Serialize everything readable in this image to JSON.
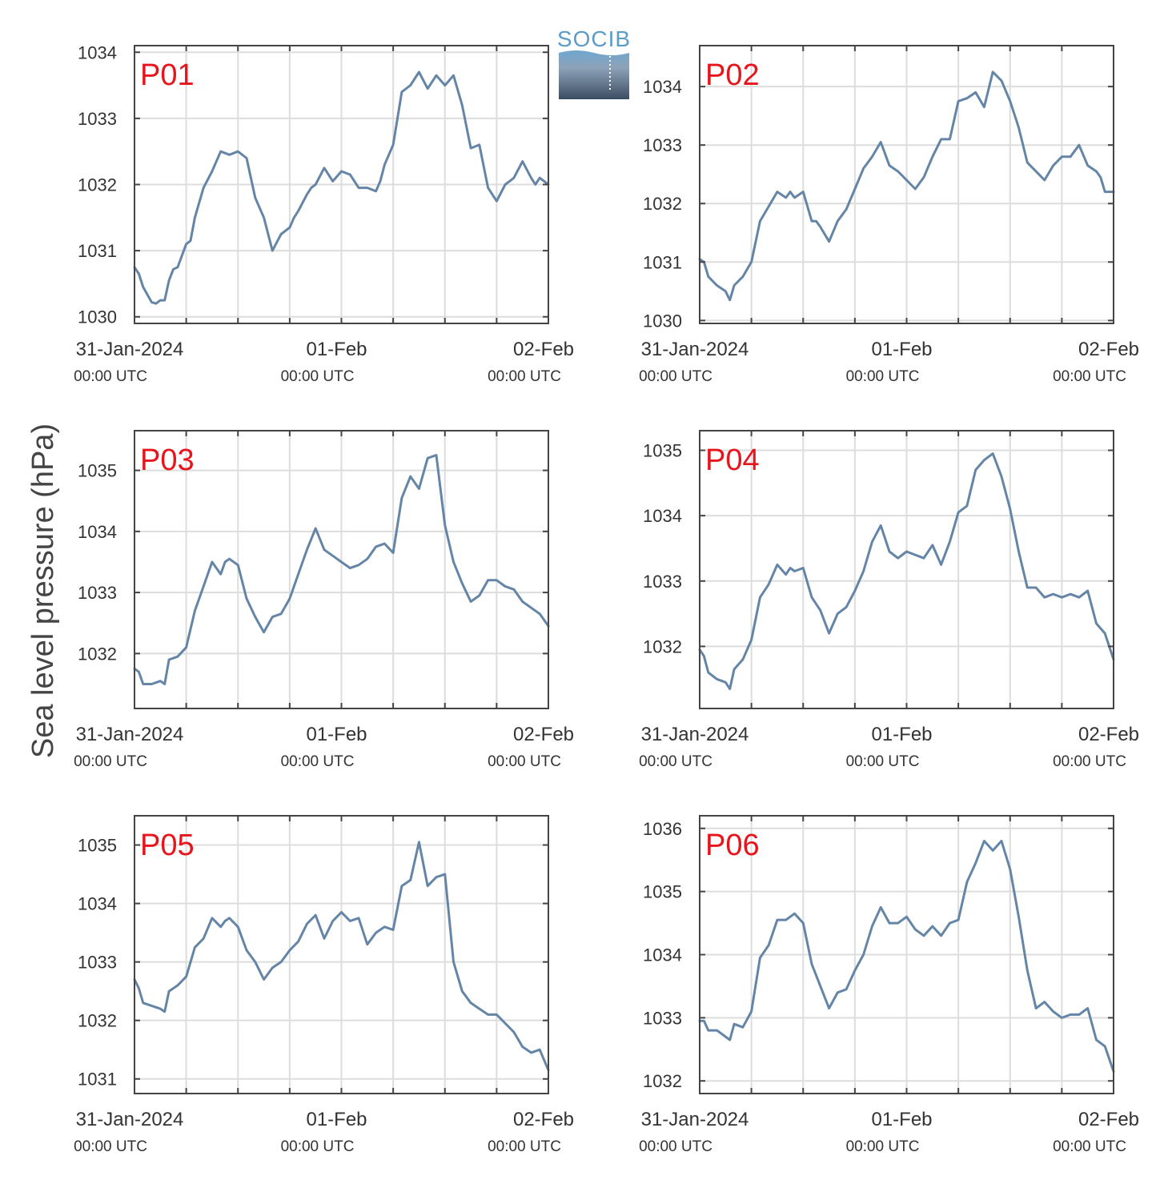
{
  "figure": {
    "ylabel": "Sea level pressure (hPa)",
    "logo_text": "SOCIB",
    "colors": {
      "line": "#6585a7",
      "title": "#e8141c",
      "grid": "#dddddd",
      "axis": "#444444",
      "logo_top": "#6fa6cf",
      "logo_bottom": "#3b4d63"
    }
  },
  "chart_data": [
    {
      "type": "line",
      "title": "P01",
      "ylim": [
        1029.9,
        1034.1
      ],
      "yticks": [
        1030,
        1031,
        1032,
        1033,
        1034
      ],
      "xticks": [
        {
          "label": "31-Jan-2024",
          "sub": "00:00 UTC"
        },
        {
          "label": "01-Feb",
          "sub": "00:00 UTC"
        },
        {
          "label": "02-Feb",
          "sub": "00:00 UTC"
        }
      ],
      "xlim_hours": [
        0,
        48
      ],
      "grid": true,
      "x_hours": [
        0,
        0.5,
        1,
        2,
        2.5,
        3,
        3.5,
        4,
        4.5,
        5,
        6,
        6.5,
        7,
        8,
        9,
        10,
        11,
        12,
        13,
        14,
        15,
        16,
        17,
        18,
        18.5,
        19,
        20,
        20.5,
        21,
        22,
        23,
        24,
        25,
        26,
        27,
        28,
        28.5,
        29,
        30,
        31,
        32,
        33,
        34,
        35,
        36,
        37,
        38,
        39,
        40,
        41,
        42,
        43,
        43.5,
        44,
        45,
        46,
        46.5,
        47,
        48
      ],
      "values": [
        1030.75,
        1030.65,
        1030.45,
        1030.22,
        1030.2,
        1030.25,
        1030.25,
        1030.55,
        1030.72,
        1030.75,
        1031.1,
        1031.15,
        1031.5,
        1031.95,
        1032.2,
        1032.5,
        1032.45,
        1032.5,
        1032.4,
        1031.8,
        1031.5,
        1031.0,
        1031.25,
        1031.35,
        1031.5,
        1031.6,
        1031.85,
        1031.95,
        1032.0,
        1032.25,
        1032.05,
        1032.2,
        1032.15,
        1031.95,
        1031.95,
        1031.9,
        1032.05,
        1032.3,
        1032.6,
        1033.4,
        1033.5,
        1033.7,
        1033.45,
        1033.65,
        1033.5,
        1033.65,
        1033.2,
        1032.55,
        1032.6,
        1031.95,
        1031.75,
        1032.0,
        1032.05,
        1032.1,
        1032.35,
        1032.1,
        1032.0,
        1032.1,
        1032.0
      ]
    },
    {
      "type": "line",
      "title": "P02",
      "ylim": [
        1029.95,
        1034.7
      ],
      "yticks": [
        1030,
        1031,
        1032,
        1033,
        1034
      ],
      "xticks": [
        {
          "label": "31-Jan-2024",
          "sub": "00:00 UTC"
        },
        {
          "label": "01-Feb",
          "sub": "00:00 UTC"
        },
        {
          "label": "02-Feb",
          "sub": "00:00 UTC"
        }
      ],
      "xlim_hours": [
        0,
        48
      ],
      "grid": true,
      "x_hours": [
        0,
        0.5,
        1,
        2,
        3,
        3.5,
        4,
        5,
        6,
        7,
        8,
        9,
        10,
        10.5,
        11,
        12,
        13,
        13.5,
        14,
        15,
        16,
        17,
        18,
        19,
        20,
        21,
        22,
        23,
        24,
        25,
        26,
        27,
        28,
        29,
        30,
        31,
        32,
        33,
        34,
        35,
        36,
        37,
        38,
        39,
        40,
        41,
        42,
        43,
        44,
        45,
        46,
        46.5,
        47,
        48
      ],
      "values": [
        1031.05,
        1031.0,
        1030.75,
        1030.6,
        1030.5,
        1030.35,
        1030.6,
        1030.75,
        1031.0,
        1031.7,
        1031.95,
        1032.2,
        1032.1,
        1032.2,
        1032.1,
        1032.2,
        1031.7,
        1031.7,
        1031.6,
        1031.35,
        1031.7,
        1031.9,
        1032.25,
        1032.6,
        1032.8,
        1033.05,
        1032.65,
        1032.55,
        1032.4,
        1032.25,
        1032.45,
        1032.8,
        1033.1,
        1033.1,
        1033.75,
        1033.8,
        1033.9,
        1033.65,
        1034.25,
        1034.1,
        1033.75,
        1033.3,
        1032.7,
        1032.55,
        1032.4,
        1032.65,
        1032.8,
        1032.8,
        1033.0,
        1032.65,
        1032.55,
        1032.45,
        1032.2,
        1032.2
      ]
    },
    {
      "type": "line",
      "title": "P03",
      "ylim": [
        1031.1,
        1035.65
      ],
      "yticks": [
        1032,
        1033,
        1034,
        1035
      ],
      "xticks": [
        {
          "label": "31-Jan-2024",
          "sub": "00:00 UTC"
        },
        {
          "label": "01-Feb",
          "sub": "00:00 UTC"
        },
        {
          "label": "02-Feb",
          "sub": "00:00 UTC"
        }
      ],
      "xlim_hours": [
        0,
        48
      ],
      "grid": true,
      "x_hours": [
        0,
        0.5,
        1,
        2,
        3,
        3.5,
        4,
        5,
        6,
        7,
        8,
        9,
        10,
        10.5,
        11,
        12,
        13,
        14,
        15,
        16,
        17,
        18,
        19,
        20,
        21,
        22,
        23,
        24,
        25,
        26,
        27,
        28,
        29,
        30,
        31,
        32,
        33,
        34,
        35,
        36,
        37,
        38,
        39,
        40,
        41,
        42,
        43,
        44,
        45,
        46,
        47,
        48
      ],
      "values": [
        1031.75,
        1031.7,
        1031.5,
        1031.5,
        1031.55,
        1031.5,
        1031.9,
        1031.95,
        1032.1,
        1032.7,
        1033.1,
        1033.5,
        1033.3,
        1033.5,
        1033.55,
        1033.45,
        1032.9,
        1032.6,
        1032.35,
        1032.6,
        1032.65,
        1032.9,
        1033.3,
        1033.7,
        1034.05,
        1033.7,
        1033.6,
        1033.5,
        1033.4,
        1033.45,
        1033.55,
        1033.75,
        1033.8,
        1033.65,
        1034.55,
        1034.9,
        1034.7,
        1035.2,
        1035.25,
        1034.1,
        1033.5,
        1033.15,
        1032.85,
        1032.95,
        1033.2,
        1033.2,
        1033.1,
        1033.05,
        1032.85,
        1032.75,
        1032.65,
        1032.45
      ]
    },
    {
      "type": "line",
      "title": "P04",
      "ylim": [
        1031.05,
        1035.3
      ],
      "yticks": [
        1032,
        1033,
        1034,
        1035
      ],
      "xticks": [
        {
          "label": "31-Jan-2024",
          "sub": "00:00 UTC"
        },
        {
          "label": "01-Feb",
          "sub": "00:00 UTC"
        },
        {
          "label": "02-Feb",
          "sub": "00:00 UTC"
        }
      ],
      "xlim_hours": [
        0,
        48
      ],
      "grid": true,
      "x_hours": [
        0,
        0.5,
        1,
        2,
        3,
        3.5,
        4,
        5,
        6,
        7,
        8,
        9,
        10,
        10.5,
        11,
        12,
        13,
        14,
        15,
        16,
        17,
        18,
        19,
        20,
        21,
        22,
        23,
        24,
        25,
        26,
        27,
        28,
        29,
        30,
        31,
        32,
        33,
        34,
        35,
        36,
        37,
        38,
        39,
        40,
        41,
        42,
        43,
        44,
        45,
        46,
        47,
        48
      ],
      "values": [
        1031.95,
        1031.85,
        1031.6,
        1031.5,
        1031.45,
        1031.35,
        1031.65,
        1031.8,
        1032.1,
        1032.75,
        1032.95,
        1033.25,
        1033.1,
        1033.2,
        1033.15,
        1033.2,
        1032.75,
        1032.55,
        1032.2,
        1032.5,
        1032.6,
        1032.85,
        1033.15,
        1033.6,
        1033.85,
        1033.45,
        1033.35,
        1033.45,
        1033.4,
        1033.35,
        1033.55,
        1033.25,
        1033.6,
        1034.05,
        1034.15,
        1034.7,
        1034.85,
        1034.95,
        1034.6,
        1034.1,
        1033.45,
        1032.9,
        1032.9,
        1032.75,
        1032.8,
        1032.75,
        1032.8,
        1032.75,
        1032.85,
        1032.35,
        1032.2,
        1031.8
      ]
    },
    {
      "type": "line",
      "title": "P05",
      "ylim": [
        1030.75,
        1035.5
      ],
      "yticks": [
        1031,
        1032,
        1033,
        1034,
        1035
      ],
      "xticks": [
        {
          "label": "31-Jan-2024",
          "sub": "00:00 UTC"
        },
        {
          "label": "01-Feb",
          "sub": "00:00 UTC"
        },
        {
          "label": "02-Feb",
          "sub": "00:00 UTC"
        }
      ],
      "xlim_hours": [
        0,
        48
      ],
      "grid": true,
      "x_hours": [
        0,
        0.5,
        1,
        2,
        3,
        3.5,
        4,
        5,
        6,
        7,
        8,
        9,
        10,
        10.5,
        11,
        12,
        13,
        14,
        15,
        16,
        17,
        18,
        19,
        20,
        21,
        22,
        23,
        24,
        25,
        26,
        27,
        28,
        29,
        30,
        31,
        32,
        33,
        34,
        35,
        36,
        37,
        38,
        39,
        40,
        41,
        42,
        43,
        44,
        45,
        46,
        47,
        48
      ],
      "values": [
        1032.7,
        1032.55,
        1032.3,
        1032.25,
        1032.2,
        1032.15,
        1032.5,
        1032.6,
        1032.75,
        1033.25,
        1033.4,
        1033.75,
        1033.6,
        1033.7,
        1033.75,
        1033.6,
        1033.2,
        1033.0,
        1032.7,
        1032.9,
        1033.0,
        1033.2,
        1033.35,
        1033.65,
        1033.8,
        1033.4,
        1033.7,
        1033.85,
        1033.7,
        1033.75,
        1033.3,
        1033.5,
        1033.6,
        1033.55,
        1034.3,
        1034.4,
        1035.05,
        1034.3,
        1034.45,
        1034.5,
        1033.0,
        1032.5,
        1032.3,
        1032.2,
        1032.1,
        1032.1,
        1031.95,
        1031.8,
        1031.55,
        1031.45,
        1031.5,
        1031.15
      ]
    },
    {
      "type": "line",
      "title": "P06",
      "ylim": [
        1031.8,
        1036.2
      ],
      "yticks": [
        1032,
        1033,
        1034,
        1035,
        1036
      ],
      "xticks": [
        {
          "label": "31-Jan-2024",
          "sub": "00:00 UTC"
        },
        {
          "label": "01-Feb",
          "sub": "00:00 UTC"
        },
        {
          "label": "02-Feb",
          "sub": "00:00 UTC"
        }
      ],
      "xlim_hours": [
        0,
        48
      ],
      "grid": true,
      "x_hours": [
        0,
        0.5,
        1,
        2,
        3,
        3.5,
        4,
        5,
        6,
        7,
        8,
        9,
        10,
        10.5,
        11,
        12,
        13,
        14,
        15,
        16,
        17,
        18,
        19,
        20,
        21,
        22,
        23,
        24,
        25,
        26,
        27,
        28,
        29,
        30,
        31,
        32,
        33,
        34,
        35,
        36,
        37,
        38,
        39,
        40,
        41,
        42,
        43,
        44,
        45,
        46,
        47,
        48
      ],
      "values": [
        1032.95,
        1032.95,
        1032.8,
        1032.8,
        1032.7,
        1032.65,
        1032.9,
        1032.85,
        1033.1,
        1033.95,
        1034.15,
        1034.55,
        1034.55,
        1034.6,
        1034.65,
        1034.5,
        1033.85,
        1033.5,
        1033.15,
        1033.4,
        1033.45,
        1033.75,
        1034.0,
        1034.45,
        1034.75,
        1034.5,
        1034.5,
        1034.6,
        1034.4,
        1034.3,
        1034.45,
        1034.3,
        1034.5,
        1034.55,
        1035.15,
        1035.45,
        1035.8,
        1035.65,
        1035.8,
        1035.35,
        1034.6,
        1033.75,
        1033.15,
        1033.25,
        1033.1,
        1033.0,
        1033.05,
        1033.05,
        1033.15,
        1032.65,
        1032.55,
        1032.15
      ]
    }
  ]
}
